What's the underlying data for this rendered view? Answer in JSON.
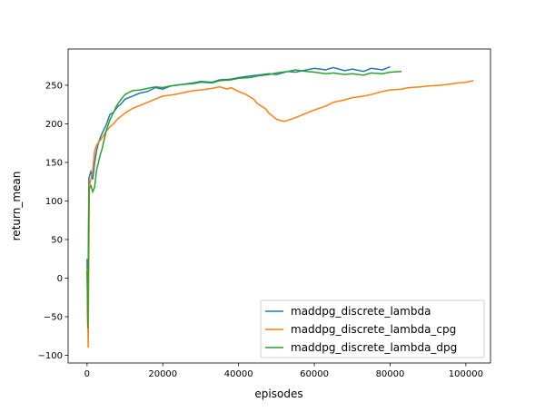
{
  "chart_data": {
    "type": "line",
    "title": "",
    "xlabel": "episodes",
    "ylabel": "return_mean",
    "xlim": [
      -5000,
      106500
    ],
    "ylim": [
      -110,
      297
    ],
    "xticks": [
      0,
      20000,
      40000,
      60000,
      80000,
      100000
    ],
    "yticks": [
      -100,
      -50,
      0,
      50,
      100,
      150,
      200,
      250
    ],
    "grid": false,
    "legend_position": "lower-right",
    "series": [
      {
        "name": "maddpg_discrete_lambda",
        "color": "#1f77b4",
        "x": [
          0,
          200,
          500,
          1000,
          1500,
          2000,
          2500,
          3000,
          3500,
          4000,
          5000,
          6000,
          7000,
          8000,
          9000,
          10000,
          12000,
          14000,
          16000,
          18000,
          20000,
          22000,
          25000,
          28000,
          30000,
          33000,
          35000,
          38000,
          40000,
          43000,
          45000,
          48000,
          50000,
          53000,
          55000,
          58000,
          60000,
          63000,
          65000,
          68000,
          70000,
          73000,
          75000,
          78000,
          80000
        ],
        "y": [
          25,
          -60,
          130,
          138,
          128,
          150,
          165,
          175,
          182,
          188,
          198,
          212,
          215,
          222,
          226,
          232,
          236,
          240,
          242,
          247,
          245,
          249,
          251,
          253,
          255,
          254,
          257,
          258,
          260,
          262,
          263,
          265,
          264,
          268,
          267,
          270,
          272,
          270,
          273,
          269,
          271,
          268,
          272,
          270,
          274
        ]
      },
      {
        "name": "maddpg_discrete_lambda_cpg",
        "color": "#ff7f0e",
        "x": [
          0,
          300,
          600,
          1000,
          1500,
          2000,
          2500,
          3000,
          4000,
          5000,
          6000,
          7000,
          8000,
          10000,
          12000,
          15000,
          18000,
          20000,
          23000,
          25000,
          28000,
          30000,
          33000,
          35000,
          37000,
          38000,
          40000,
          42000,
          44000,
          45000,
          47000,
          48000,
          50000,
          52000,
          55000,
          58000,
          60000,
          63000,
          65000,
          68000,
          70000,
          73000,
          75000,
          78000,
          80000,
          83000,
          85000,
          88000,
          90000,
          93000,
          95000,
          98000,
          100000,
          102000
        ],
        "y": [
          12,
          -90,
          120,
          128,
          140,
          165,
          172,
          176,
          182,
          190,
          196,
          200,
          206,
          214,
          220,
          226,
          232,
          236,
          238,
          240,
          243,
          244,
          246,
          248,
          245,
          247,
          242,
          238,
          232,
          226,
          220,
          214,
          206,
          203,
          208,
          214,
          218,
          223,
          228,
          231,
          234,
          236,
          238,
          242,
          244,
          245,
          247,
          248,
          249,
          250,
          251,
          253,
          254,
          256
        ]
      },
      {
        "name": "maddpg_discrete_lambda_dpg",
        "color": "#2ca02c",
        "x": [
          0,
          200,
          500,
          1000,
          1500,
          2000,
          2500,
          3000,
          3500,
          4000,
          5000,
          6000,
          7000,
          8000,
          9000,
          10000,
          12000,
          14000,
          16000,
          18000,
          20000,
          22000,
          25000,
          28000,
          30000,
          33000,
          35000,
          38000,
          40000,
          43000,
          45000,
          48000,
          50000,
          53000,
          55000,
          58000,
          60000,
          63000,
          65000,
          68000,
          70000,
          73000,
          75000,
          78000,
          80000,
          83000
        ],
        "y": [
          10,
          -65,
          115,
          120,
          112,
          118,
          140,
          150,
          160,
          168,
          190,
          205,
          215,
          225,
          232,
          238,
          243,
          244,
          246,
          248,
          247,
          249,
          251,
          252,
          254,
          253,
          256,
          257,
          259,
          260,
          262,
          264,
          266,
          268,
          270,
          268,
          267,
          265,
          266,
          264,
          265,
          263,
          266,
          265,
          267,
          268
        ]
      }
    ]
  }
}
